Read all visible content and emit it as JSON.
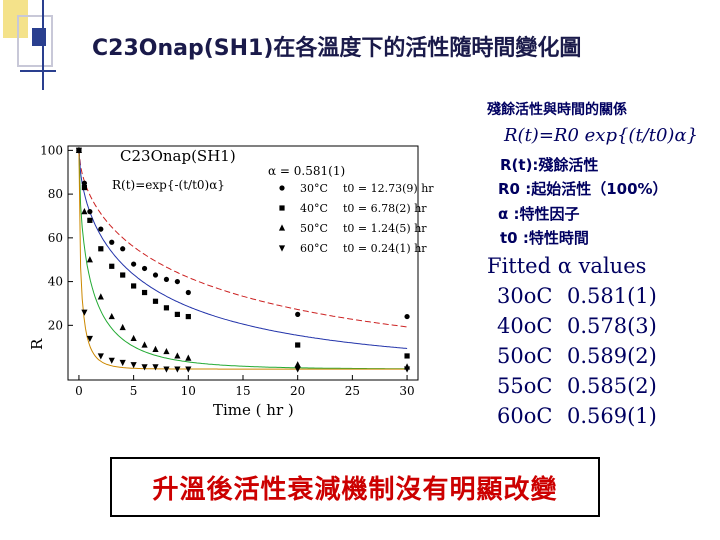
{
  "title": "C23Onap(SH1)在各溫度下的活性隨時間變化圖",
  "colors": {
    "title": "#1a1a4a",
    "panel_text": "#000060",
    "conclusion": "#cc0000",
    "accent_yellow": "#f4e28a",
    "accent_blue": "#2a3f8f"
  },
  "panel": {
    "heading": "殘餘活性與時間的關係",
    "equation": "R(t)=R0 exp{(t/t0)α}",
    "defs": [
      "R(t):殘餘活性",
      "R0 :起始活性（100%）",
      "α :特性因子",
      "t0 :特性時間"
    ],
    "fitted_title": "Fitted α values",
    "fitted": [
      {
        "temp": "30oC",
        "value": "0.581(1)"
      },
      {
        "temp": "40oC",
        "value": "0.578(3)"
      },
      {
        "temp": "50oC",
        "value": "0.589(2)"
      },
      {
        "temp": "55oC",
        "value": "0.585(2)"
      },
      {
        "temp": "60oC",
        "value": "0.569(1)"
      }
    ]
  },
  "conclusion": "升溫後活性衰減機制沒有明顯改變",
  "chart_data": {
    "type": "scatter",
    "title": "C23Onap(SH1)",
    "formula": "R(t)=exp{-(t/t0)α}",
    "alpha_label": "α = 0.581(1)",
    "xlabel": "Time ( hr )",
    "ylabel": "R",
    "xlim": [
      -1,
      31
    ],
    "ylim": [
      -5,
      102
    ],
    "xticks": [
      0,
      5,
      10,
      15,
      20,
      25,
      30
    ],
    "yticks": [
      20,
      40,
      60,
      80,
      100
    ],
    "legend_position": "top-right",
    "series": [
      {
        "name": "30°C",
        "t0_label": "t0 = 12.73(9) hr",
        "marker": "circle",
        "color": "#cc2222",
        "t0": 12.73,
        "alpha": 0.581,
        "x": [
          0,
          0.5,
          1,
          2,
          3,
          4,
          5,
          6,
          7,
          8,
          9,
          10,
          20,
          30
        ],
        "y": [
          100,
          85,
          72,
          64,
          58,
          55,
          48,
          46,
          43,
          41,
          40,
          35,
          25,
          24
        ]
      },
      {
        "name": "40°C",
        "t0_label": "t0 = 6.78(2) hr",
        "marker": "square",
        "color": "#2233aa",
        "t0": 6.78,
        "alpha": 0.578,
        "x": [
          0,
          0.5,
          1,
          2,
          3,
          4,
          5,
          6,
          7,
          8,
          9,
          10,
          20,
          30
        ],
        "y": [
          100,
          83,
          68,
          55,
          47,
          43,
          38,
          35,
          31,
          28,
          25,
          24,
          11,
          6
        ]
      },
      {
        "name": "50°C",
        "t0_label": "t0 = 1.24(5) hr",
        "marker": "triangle-up",
        "color": "#22aa33",
        "t0": 1.24,
        "alpha": 0.589,
        "x": [
          0,
          0.5,
          1,
          2,
          3,
          4,
          5,
          6,
          7,
          8,
          9,
          10,
          20,
          30
        ],
        "y": [
          100,
          72,
          50,
          33,
          24,
          19,
          14,
          11,
          9,
          8,
          6,
          5,
          2,
          1
        ]
      },
      {
        "name": "60°C",
        "t0_label": "t0 = 0.24(1) hr",
        "marker": "triangle-down",
        "color": "#cc8800",
        "t0": 0.24,
        "alpha": 0.569,
        "x": [
          0,
          0.5,
          1,
          2,
          3,
          4,
          5,
          6,
          7,
          8,
          9,
          10,
          20,
          30
        ],
        "y": [
          100,
          26,
          14,
          6,
          4,
          3,
          2,
          1,
          1,
          0,
          0,
          0,
          0,
          0
        ]
      }
    ]
  }
}
